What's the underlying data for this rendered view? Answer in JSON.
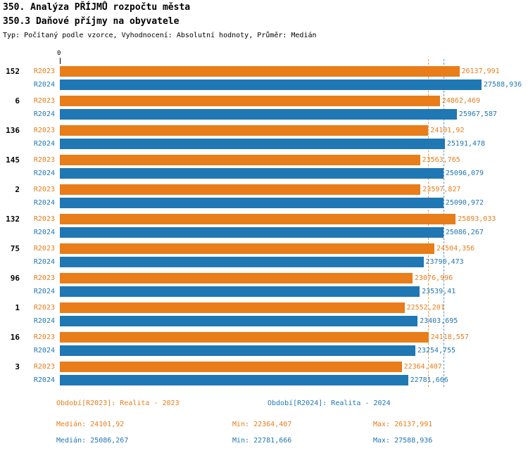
{
  "header": {
    "title1": "350. Analýza PŘÍJMŮ rozpočtu města",
    "title2": "350.3 Daňové příjmy na obyvatele",
    "subtitle": "Typ: Počítaný podle vzorce, Vyhodnocení: Absolutní hodnoty, Průměr: Medián"
  },
  "axis": {
    "zero_label": "0"
  },
  "colors": {
    "r2023": "#E87D1A",
    "r2024": "#1F77B4"
  },
  "chart_data": {
    "type": "bar",
    "orientation": "horizontal",
    "title": "350.3 Daňové příjmy na obyvatele",
    "categories": [
      "152",
      "6",
      "136",
      "145",
      "2",
      "132",
      "75",
      "96",
      "1",
      "16",
      "3"
    ],
    "series": [
      {
        "name": "R2023",
        "legend": "Období[R2023]: Realita - 2023",
        "color_key": "r2023",
        "values": [
          "26137,991",
          "24862,469",
          "24101,92",
          "23563,765",
          "23597,827",
          "25893,033",
          "24504,356",
          "23076,996",
          "22552,201",
          "24118,557",
          "22364,407"
        ]
      },
      {
        "name": "R2024",
        "legend": "Období[R2024]: Realita - 2024",
        "color_key": "r2024",
        "values": [
          "27588,936",
          "25967,587",
          "25191,478",
          "25096,079",
          "25090,972",
          "25086,267",
          "23790,473",
          "23539,41",
          "23403,695",
          "23254,755",
          "22781,666"
        ]
      }
    ],
    "xlim": [
      0,
      27588.936
    ],
    "grid": false,
    "legend_position": "bottom",
    "median_lines": {
      "r2023": "24101,92",
      "r2024": "25086,267"
    }
  },
  "legend": {
    "r2023": "Období[R2023]: Realita - 2023",
    "r2024": "Období[R2024]: Realita - 2024"
  },
  "stats": {
    "r2023": {
      "median": "Medián: 24101,92",
      "min": "Min: 22364,407",
      "max": "Max: 26137,991"
    },
    "r2024": {
      "median": "Medián: 25086,267",
      "min": "Min: 22781,666",
      "max": "Max: 27588,936"
    }
  }
}
